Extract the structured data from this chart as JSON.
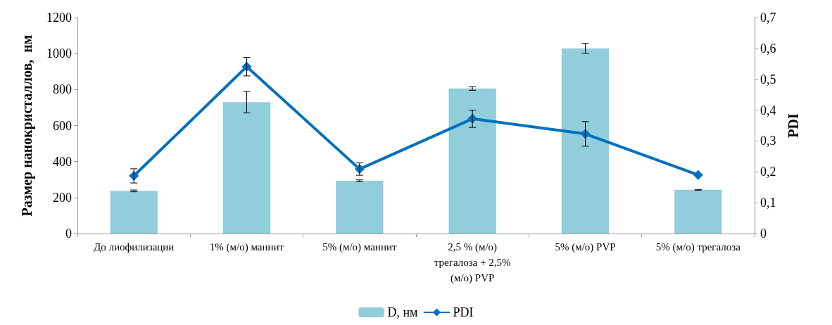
{
  "chart_data": {
    "type": "bar",
    "categories": [
      "До лиофилизации",
      "1% (м/о) маннит",
      "5% (м/о) маннит",
      "2,5 % (м/о) трегалоза + 2,5% (м/о) PVP",
      "5% (м/о) PVP",
      "5% (м/о) трегалоза"
    ],
    "series": [
      {
        "name": "D, нм",
        "color": "#92cddc",
        "values": [
          237,
          730,
          293,
          806,
          1029,
          243
        ],
        "errors": [
          5,
          60,
          5,
          10,
          27,
          2
        ]
      },
      {
        "name": "PDI",
        "type": "line",
        "axis": "y2",
        "color": "#0070c0",
        "marker": "diamond",
        "values": [
          0.187,
          0.541,
          0.209,
          0.372,
          0.323,
          0.19
        ],
        "errors": [
          0.023,
          0.03,
          0.02,
          0.028,
          0.04,
          null
        ]
      }
    ],
    "ylabel": "Размер нанокристаллов,  нм",
    "y2label": "PDI",
    "ylim": [
      0,
      1200
    ],
    "yticks": [
      0,
      200,
      400,
      600,
      800,
      1000,
      1200
    ],
    "y2lim": [
      0,
      0.7
    ],
    "y2ticks": [
      0,
      {
        "value": 0.1,
        "label": "0,1"
      },
      {
        "value": 0.2,
        "label": "0,2"
      },
      {
        "value": 0.3,
        "label": "0,3"
      },
      {
        "value": 0.4,
        "label": "0,4"
      },
      {
        "value": 0.5,
        "label": "0,5"
      },
      {
        "value": 0.6,
        "label": "0,6"
      },
      {
        "value": 0.7,
        "label": "0,7"
      }
    ],
    "grid": false,
    "legend": "bottom"
  }
}
